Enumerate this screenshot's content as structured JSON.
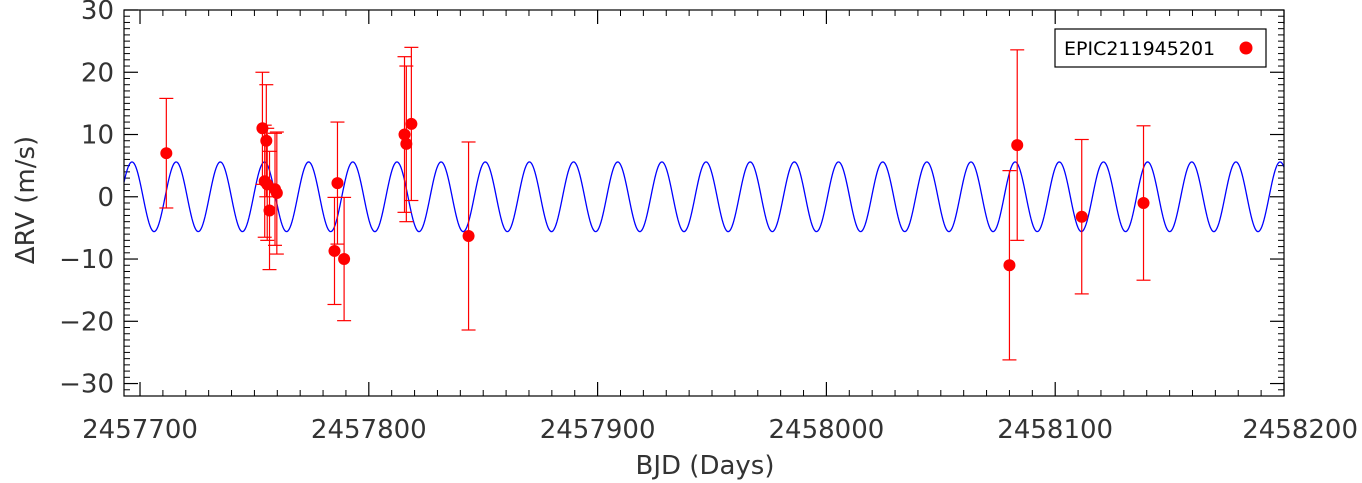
{
  "chart_data": {
    "type": "scatter",
    "title": "",
    "xlabel": "BJD (Days)",
    "ylabel": "ΔRV (m/s)",
    "xlim": [
      2457693,
      2458200
    ],
    "ylim": [
      -32,
      30
    ],
    "x_ticks": [
      2457700,
      2457800,
      2457900,
      2458000,
      2458100,
      2458200
    ],
    "x_tick_labels": [
      "2457700",
      "2457800",
      "2457900",
      "2458000",
      "2458100",
      "2458200"
    ],
    "y_ticks": [
      -30,
      -20,
      -10,
      0,
      10,
      20,
      30
    ],
    "y_tick_labels": [
      "−30",
      "−20",
      "−10",
      "0",
      "10",
      "20",
      "30"
    ],
    "grid": false,
    "legend_position": "top-right",
    "series": [
      {
        "name": "EPIC211945201",
        "kind": "points-with-errorbars",
        "color": "#ff0000",
        "points": [
          {
            "x": 2457711.5,
            "y": 7.0,
            "err": 8.8
          },
          {
            "x": 2457753.5,
            "y": 11.0,
            "err": 9.0
          },
          {
            "x": 2457754.5,
            "y": 2.5,
            "err": 9.0
          },
          {
            "x": 2457755.2,
            "y": 9.0,
            "err": 9.0
          },
          {
            "x": 2457755.6,
            "y": 2.0,
            "err": 9.0
          },
          {
            "x": 2457756.6,
            "y": -2.2,
            "err": 9.5
          },
          {
            "x": 2457759.0,
            "y": 1.2,
            "err": 9.0
          },
          {
            "x": 2457759.8,
            "y": 0.6,
            "err": 9.8
          },
          {
            "x": 2457785.0,
            "y": -8.7,
            "err": 8.6
          },
          {
            "x": 2457786.3,
            "y": 2.2,
            "err": 9.8
          },
          {
            "x": 2457789.2,
            "y": -10.0,
            "err": 9.9
          },
          {
            "x": 2457815.6,
            "y": 10.0,
            "err": 12.5
          },
          {
            "x": 2457816.4,
            "y": 8.5,
            "err": 12.5
          },
          {
            "x": 2457818.6,
            "y": 11.7,
            "err": 12.3
          },
          {
            "x": 2457843.6,
            "y": -6.3,
            "err": 15.1
          },
          {
            "x": 2458080.0,
            "y": -11.0,
            "err": 15.2
          },
          {
            "x": 2458083.4,
            "y": 8.3,
            "err": 15.3
          },
          {
            "x": 2458111.6,
            "y": -3.2,
            "err": 12.4
          },
          {
            "x": 2458138.6,
            "y": -1.0,
            "err": 12.4
          }
        ]
      },
      {
        "kind": "sinusoid-model",
        "color": "#0000ff",
        "amplitude": 5.6,
        "period": 19.3,
        "phase_zero_x": 2457696.5
      }
    ]
  }
}
